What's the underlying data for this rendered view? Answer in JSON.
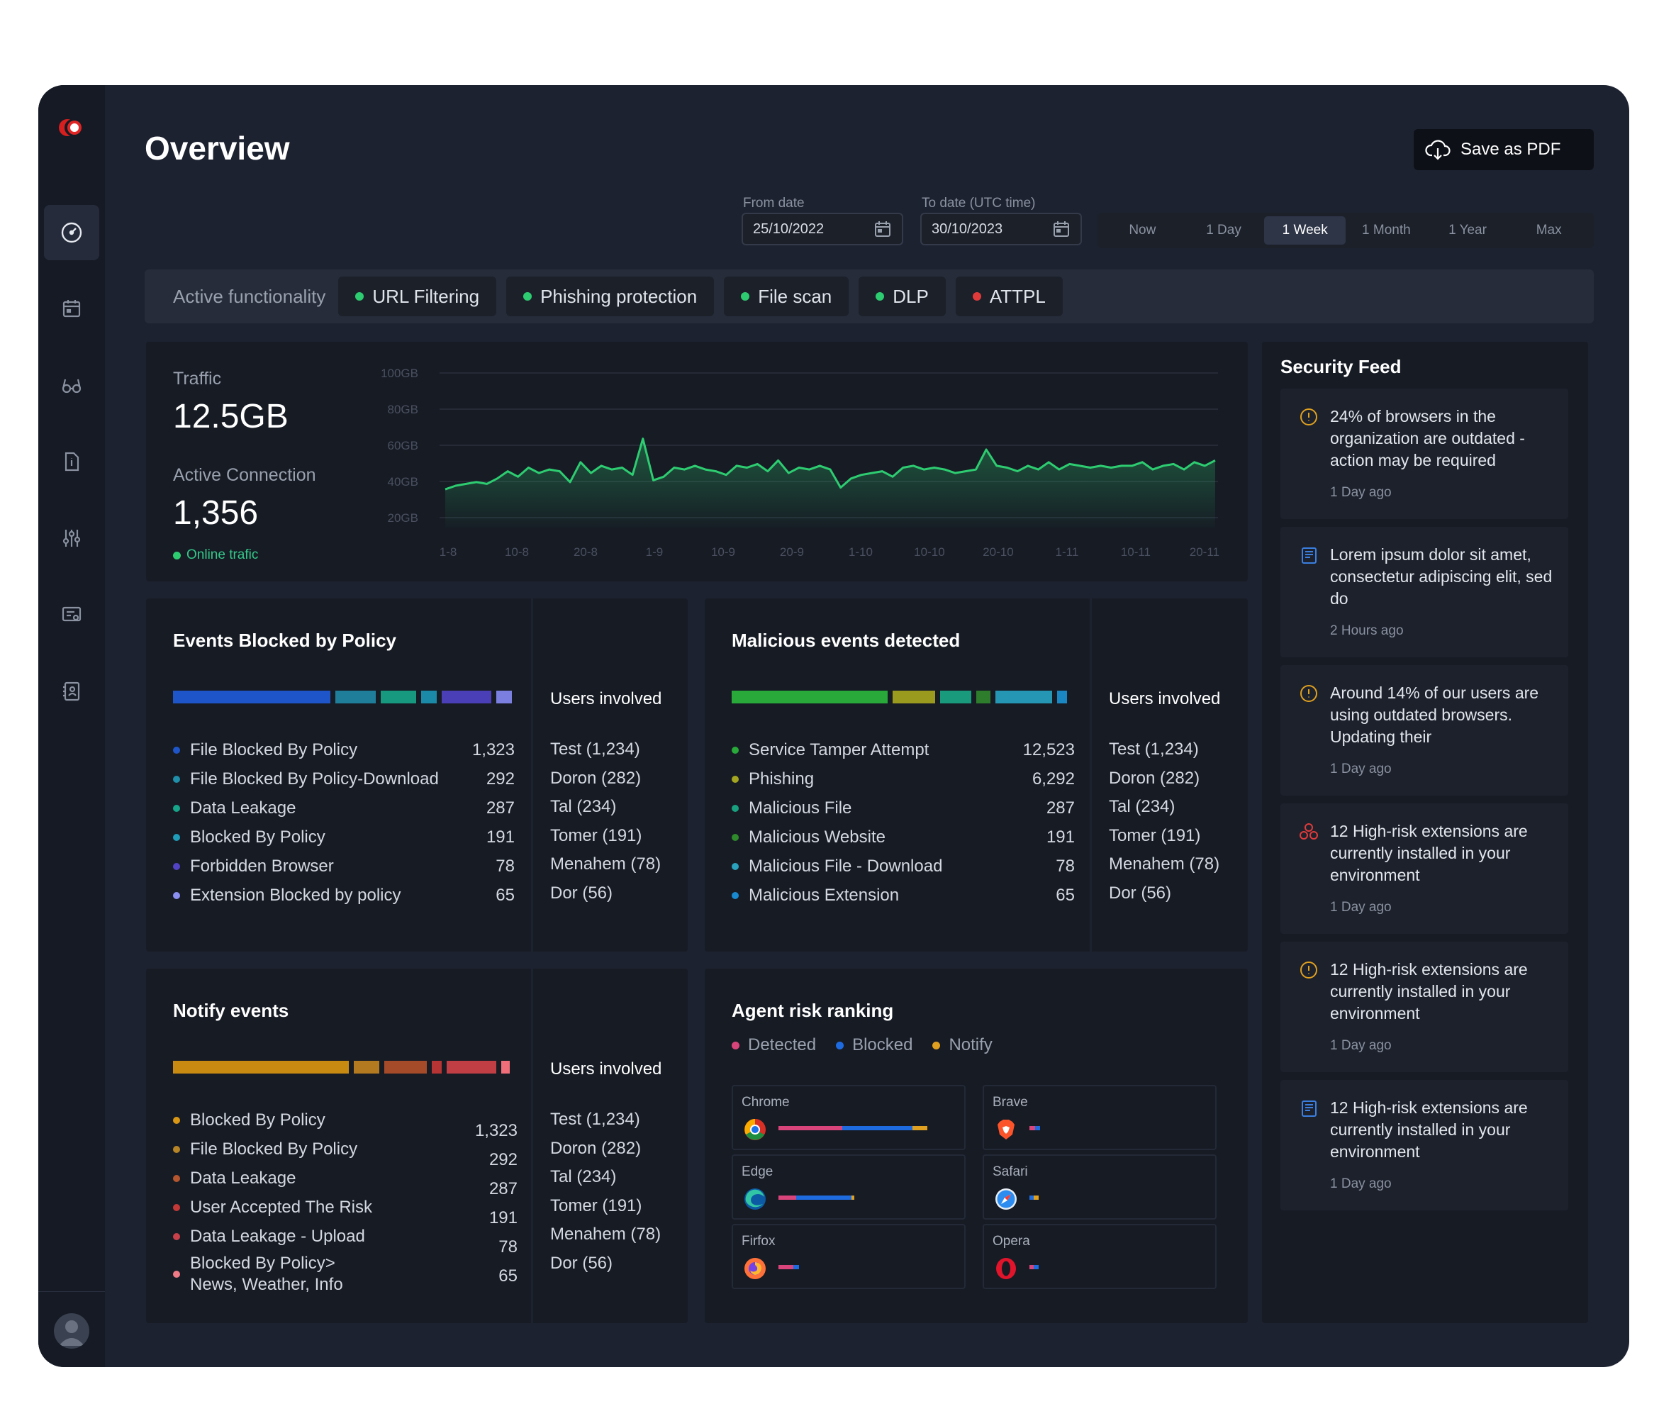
{
  "page": {
    "title": "Overview",
    "save_label": "Save as PDF"
  },
  "dates": {
    "from_label": "From date",
    "from_value": "25/10/2022",
    "to_label": "To date (UTC time)",
    "to_value": "30/10/2023"
  },
  "ranges": [
    "Now",
    "1 Day",
    "1 Week",
    "1 Month",
    "1 Year",
    "Max"
  ],
  "active_range": "1 Week",
  "functionality": {
    "label": "Active functionality",
    "chips": [
      {
        "label": "URL Filtering",
        "color": "#2ecc71"
      },
      {
        "label": "Phishing protection",
        "color": "#2ecc71"
      },
      {
        "label": "File scan",
        "color": "#2ecc71"
      },
      {
        "label": "DLP",
        "color": "#2ecc71"
      },
      {
        "label": "ATTPL",
        "color": "#e03b3b"
      }
    ]
  },
  "traffic": {
    "label": "Traffic",
    "value": "12.5GB",
    "conn_label": "Active Connection",
    "conn_value": "1,356",
    "online_label": "Online trafic"
  },
  "chart_data": {
    "type": "area",
    "y_ticks": [
      "100GB",
      "80GB",
      "60GB",
      "40GB",
      "20GB"
    ],
    "ylim": [
      0,
      100
    ],
    "x_ticks": [
      "1-8",
      "10-8",
      "20-8",
      "1-9",
      "10-9",
      "20-9",
      "1-10",
      "10-10",
      "20-10",
      "1-11",
      "10-11",
      "20-11"
    ],
    "values": [
      18,
      20,
      21,
      22,
      21,
      24,
      28,
      25,
      30,
      27,
      29,
      28,
      22,
      33,
      27,
      31,
      29,
      30,
      26,
      46,
      23,
      25,
      30,
      29,
      31,
      29,
      28,
      26,
      31,
      30,
      32,
      28,
      34,
      27,
      30,
      29,
      31,
      29,
      19,
      24,
      26,
      27,
      28,
      25,
      30,
      31,
      29,
      30,
      29,
      27,
      28,
      29,
      40,
      31,
      30,
      28,
      31,
      29,
      33,
      29,
      32,
      31,
      30,
      31,
      30,
      31,
      31,
      33,
      29,
      31,
      32,
      29,
      33,
      31,
      34
    ],
    "grid": true,
    "color": "#2ecc71"
  },
  "blocked": {
    "title": "Events Blocked by Policy",
    "bar_colors": [
      "#1e56c9",
      "#1f7f9a",
      "#17997f",
      "#1a8aa8",
      "#4b3fb7",
      "#7b7fe0"
    ],
    "rows": [
      {
        "label": "File Blocked By Policy",
        "value": "1,323",
        "color": "#1e56c9"
      },
      {
        "label": "File Blocked By Policy-Download",
        "value": "292",
        "color": "#1f8faa"
      },
      {
        "label": "Data Leakage",
        "value": "287",
        "color": "#17a58a"
      },
      {
        "label": "Blocked By Policy",
        "value": "191",
        "color": "#1e9cb8"
      },
      {
        "label": "Forbidden Browser",
        "value": "78",
        "color": "#5243c4"
      },
      {
        "label": "Extension Blocked by policy",
        "value": "65",
        "color": "#8a8ff0"
      }
    ],
    "users_title": "Users involved",
    "users": [
      "Test (1,234)",
      "Doron (282)",
      "Tal (234)",
      "Tomer (191)",
      "Menahem (78)",
      "Dor (56)"
    ]
  },
  "malicious": {
    "title": "Malicious events detected",
    "bar_colors": [
      "#28a93a",
      "#9a9a1f",
      "#1a9a7c",
      "#2e7d2c",
      "#2596b3",
      "#1a86c2"
    ],
    "rows": [
      {
        "label": "Service Tamper Attempt",
        "value": "12,523",
        "color": "#28a93a"
      },
      {
        "label": "Phishing",
        "value": "6,292",
        "color": "#a3a520"
      },
      {
        "label": "Malicious File",
        "value": "287",
        "color": "#19a07f"
      },
      {
        "label": "Malicious Website",
        "value": "191",
        "color": "#2e8a2b"
      },
      {
        "label": "Malicious File - Download",
        "value": "78",
        "color": "#2aa1bd"
      },
      {
        "label": "Malicious Extension",
        "value": "65",
        "color": "#1a8ad0"
      }
    ],
    "users_title": "Users involved",
    "users": [
      "Test (1,234)",
      "Doron (282)",
      "Tal (234)",
      "Tomer (191)",
      "Menahem (78)",
      "Dor (56)"
    ]
  },
  "notify": {
    "title": "Notify events",
    "bar_colors": [
      "#c98a12",
      "#b47a20",
      "#a64b2a",
      "#b73434",
      "#c23e45",
      "#ef6e7a"
    ],
    "rows": [
      {
        "label": "Blocked By Policy",
        "value": "1,323",
        "color": "#d99714"
      },
      {
        "label": "File Blocked By Policy",
        "value": "292",
        "color": "#b88526"
      },
      {
        "label": "Data Leakage",
        "value": "287",
        "color": "#b5562f"
      },
      {
        "label": "User Accepted The Risk",
        "value": "191",
        "color": "#c43838"
      },
      {
        "label": "Data Leakage - Upload",
        "value": "78",
        "color": "#c8404a"
      },
      {
        "label": "Blocked By Policy> News, Weather, Info",
        "value": "65",
        "color": "#f07a86"
      }
    ],
    "users_title": "Users involved",
    "users": [
      "Test (1,234)",
      "Doron (282)",
      "Tal (234)",
      "Tomer (191)",
      "Menahem (78)",
      "Dor (56)"
    ]
  },
  "agent_risk": {
    "title": "Agent risk ranking",
    "legend": [
      {
        "label": "Detected",
        "color": "#d9457a"
      },
      {
        "label": "Blocked",
        "color": "#1e6be0"
      },
      {
        "label": "Notify",
        "color": "#e0a020"
      }
    ],
    "browsers": [
      {
        "name": "Chrome",
        "icon": "chrome-icon",
        "detected": 0.43,
        "blocked": 0.47,
        "notify": 0.1
      },
      {
        "name": "Brave",
        "icon": "brave-icon",
        "detected": 0.04,
        "blocked": 0.03,
        "notify": 0.0
      },
      {
        "name": "Edge",
        "icon": "edge-icon",
        "detected": 0.12,
        "blocked": 0.37,
        "notify": 0.02
      },
      {
        "name": "Safari",
        "icon": "safari-icon",
        "detected": 0.0,
        "blocked": 0.03,
        "notify": 0.03
      },
      {
        "name": "Firfox",
        "icon": "firefox-icon",
        "detected": 0.1,
        "blocked": 0.04,
        "notify": 0.0
      },
      {
        "name": "Opera",
        "icon": "opera-icon",
        "detected": 0.03,
        "blocked": 0.03,
        "notify": 0.0
      }
    ]
  },
  "feed": {
    "title": "Security Feed",
    "items": [
      {
        "icon": "alert-circle-icon",
        "text": "24% of browsers in the organization are outdated - action may be required",
        "time": "1 Day ago"
      },
      {
        "icon": "document-icon",
        "text": "Lorem ipsum dolor sit amet, consectetur adipiscing elit, sed do",
        "time": "2 Hours ago"
      },
      {
        "icon": "alert-circle-icon",
        "text": "Around 14% of our users are using outdated browsers. Updating their",
        "time": "1 Day ago"
      },
      {
        "icon": "extension-risk-icon",
        "text": "12 High-risk extensions are currently installed in your environment",
        "time": "1 Day ago"
      },
      {
        "icon": "alert-circle-icon",
        "text": "12 High-risk extensions are currently installed in your environment",
        "time": "1 Day ago"
      },
      {
        "icon": "document-icon",
        "text": "12 High-risk extensions are currently installed in your environment",
        "time": "1 Day ago"
      }
    ]
  }
}
